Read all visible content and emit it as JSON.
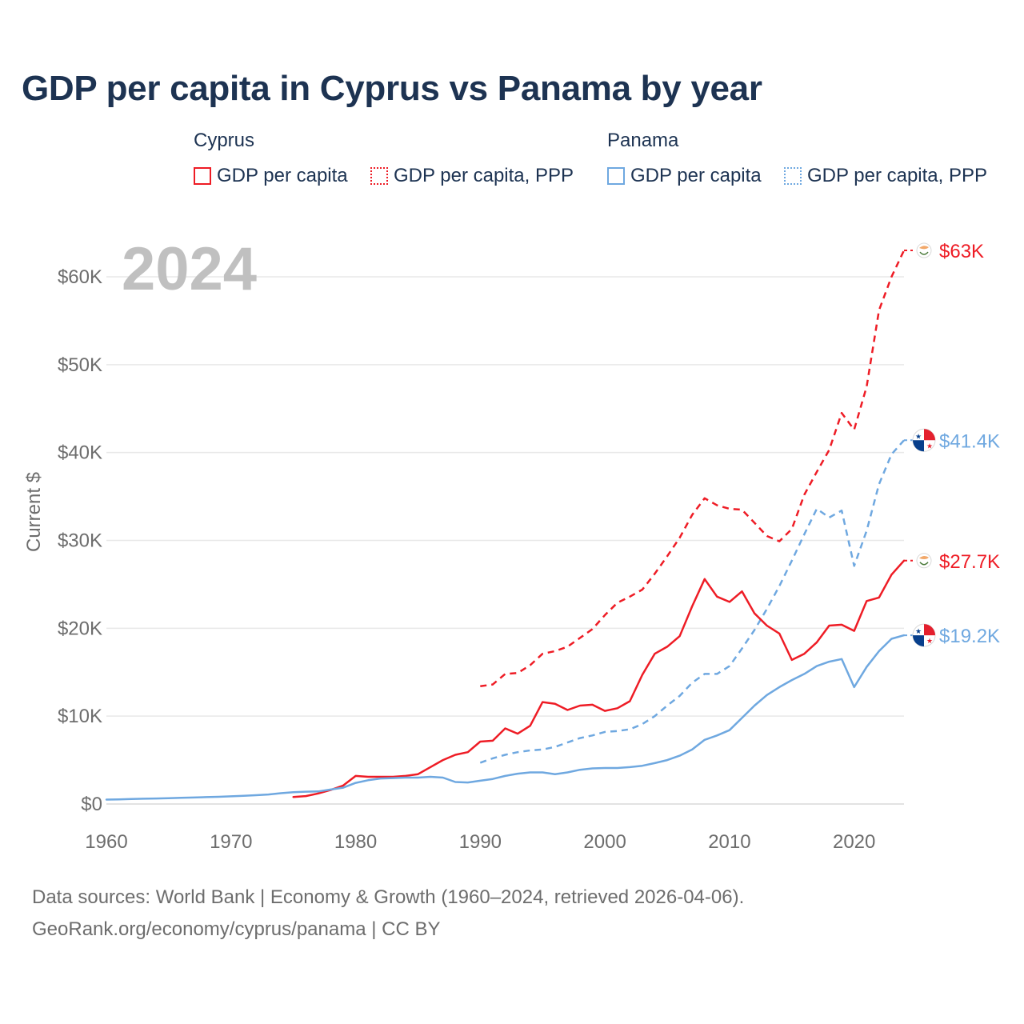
{
  "title": "GDP per capita in Cyprus vs Panama by year",
  "legend": {
    "groups": [
      {
        "country": "Cyprus",
        "color": "#ee1c25",
        "items": [
          {
            "label": "GDP per capita",
            "style": "solid"
          },
          {
            "label": "GDP per capita, PPP",
            "style": "dotted"
          }
        ]
      },
      {
        "country": "Panama",
        "color": "#6fa8e0",
        "items": [
          {
            "label": "GDP per capita",
            "style": "solid"
          },
          {
            "label": "GDP per capita, PPP",
            "style": "dotted"
          }
        ]
      }
    ]
  },
  "year_watermark": "2024",
  "footer": {
    "line1": "Data sources: World Bank | Economy & Growth (1960–2024, retrieved 2026-04-06).",
    "line2": "GeoRank.org/economy/cyprus/panama | CC BY"
  },
  "chart_data": {
    "type": "line",
    "title": "GDP per capita in Cyprus vs Panama by year",
    "xlabel": "",
    "ylabel": "Current $",
    "xlim": [
      1960,
      2024
    ],
    "ylim": [
      0,
      65000
    ],
    "x_ticks": [
      1960,
      1970,
      1980,
      1990,
      2000,
      2010,
      2020
    ],
    "y_ticks": [
      0,
      10000,
      20000,
      30000,
      40000,
      50000,
      60000
    ],
    "y_tick_labels": [
      "$0",
      "$10K",
      "$20K",
      "$30K",
      "$40K",
      "$50K",
      "$60K"
    ],
    "grid": true,
    "series": [
      {
        "name": "Cyprus GDP per capita, PPP",
        "country": "Cyprus",
        "color": "#ee1c25",
        "dash": "dashed",
        "end_label": "$63K",
        "x": [
          1990,
          1991,
          1992,
          1993,
          1994,
          1995,
          1996,
          1997,
          1998,
          1999,
          2000,
          2001,
          2002,
          2003,
          2004,
          2005,
          2006,
          2007,
          2008,
          2009,
          2010,
          2011,
          2012,
          2013,
          2014,
          2015,
          2016,
          2017,
          2018,
          2019,
          2020,
          2021,
          2022,
          2023,
          2024
        ],
        "values": [
          13400,
          13600,
          14800,
          14900,
          15800,
          17100,
          17400,
          17900,
          18900,
          19900,
          21500,
          22900,
          23600,
          24400,
          26200,
          28200,
          30300,
          32900,
          34800,
          34000,
          33600,
          33500,
          32000,
          30500,
          29900,
          31300,
          35200,
          37800,
          40300,
          44500,
          42600,
          47500,
          56200,
          60000,
          63000
        ]
      },
      {
        "name": "Panama GDP per capita, PPP",
        "country": "Panama",
        "color": "#6fa8e0",
        "dash": "dashed",
        "end_label": "$41.4K",
        "x": [
          1990,
          1991,
          1992,
          1993,
          1994,
          1995,
          1996,
          1997,
          1998,
          1999,
          2000,
          2001,
          2002,
          2003,
          2004,
          2005,
          2006,
          2007,
          2008,
          2009,
          2010,
          2011,
          2012,
          2013,
          2014,
          2015,
          2016,
          2017,
          2018,
          2019,
          2020,
          2021,
          2022,
          2023,
          2024
        ],
        "values": [
          4700,
          5200,
          5600,
          5900,
          6100,
          6200,
          6500,
          7000,
          7500,
          7800,
          8200,
          8300,
          8500,
          9100,
          10000,
          11200,
          12300,
          13800,
          14800,
          14800,
          15700,
          17700,
          19800,
          22200,
          24800,
          27700,
          30700,
          33600,
          32600,
          33400,
          27100,
          31100,
          36400,
          39800,
          41400
        ]
      },
      {
        "name": "Cyprus GDP per capita",
        "country": "Cyprus",
        "color": "#ee1c25",
        "dash": "solid",
        "end_label": "$27.7K",
        "x": [
          1975,
          1976,
          1977,
          1978,
          1979,
          1980,
          1981,
          1982,
          1983,
          1984,
          1985,
          1986,
          1987,
          1988,
          1989,
          1990,
          1991,
          1992,
          1993,
          1994,
          1995,
          1996,
          1997,
          1998,
          1999,
          2000,
          2001,
          2002,
          2003,
          2004,
          2005,
          2006,
          2007,
          2008,
          2009,
          2010,
          2011,
          2012,
          2013,
          2014,
          2015,
          2016,
          2017,
          2018,
          2019,
          2020,
          2021,
          2022,
          2023,
          2024
        ],
        "values": [
          800,
          900,
          1200,
          1600,
          2100,
          3200,
          3100,
          3100,
          3100,
          3200,
          3400,
          4200,
          5000,
          5600,
          5900,
          7100,
          7200,
          8600,
          8000,
          8900,
          11600,
          11400,
          10700,
          11200,
          11300,
          10600,
          10900,
          11700,
          14700,
          17100,
          17900,
          19100,
          22500,
          25600,
          23600,
          23000,
          24200,
          21700,
          20300,
          19400,
          16400,
          17100,
          18400,
          20300,
          20400,
          19700,
          23100,
          23500,
          26100,
          27700
        ]
      },
      {
        "name": "Panama GDP per capita",
        "country": "Panama",
        "color": "#6fa8e0",
        "dash": "solid",
        "end_label": "$19.2K",
        "x": [
          1960,
          1961,
          1962,
          1963,
          1964,
          1965,
          1966,
          1967,
          1968,
          1969,
          1970,
          1971,
          1972,
          1973,
          1974,
          1975,
          1976,
          1977,
          1978,
          1979,
          1980,
          1981,
          1982,
          1983,
          1984,
          1985,
          1986,
          1987,
          1988,
          1989,
          1990,
          1991,
          1992,
          1993,
          1994,
          1995,
          1996,
          1997,
          1998,
          1999,
          2000,
          2001,
          2002,
          2003,
          2004,
          2005,
          2006,
          2007,
          2008,
          2009,
          2010,
          2011,
          2012,
          2013,
          2014,
          2015,
          2016,
          2017,
          2018,
          2019,
          2020,
          2021,
          2022,
          2023,
          2024
        ],
        "values": [
          500,
          530,
          560,
          600,
          630,
          660,
          700,
          740,
          780,
          820,
          870,
          940,
          1000,
          1080,
          1230,
          1350,
          1400,
          1430,
          1650,
          1860,
          2400,
          2700,
          2900,
          2950,
          3000,
          3000,
          3100,
          3000,
          2500,
          2450,
          2650,
          2850,
          3200,
          3450,
          3600,
          3600,
          3400,
          3600,
          3900,
          4050,
          4100,
          4100,
          4200,
          4350,
          4650,
          5000,
          5500,
          6200,
          7300,
          7800,
          8400,
          9800,
          11200,
          12400,
          13300,
          14100,
          14800,
          15700,
          16200,
          16500,
          13300,
          15600,
          17400,
          18800,
          19200
        ]
      }
    ]
  }
}
